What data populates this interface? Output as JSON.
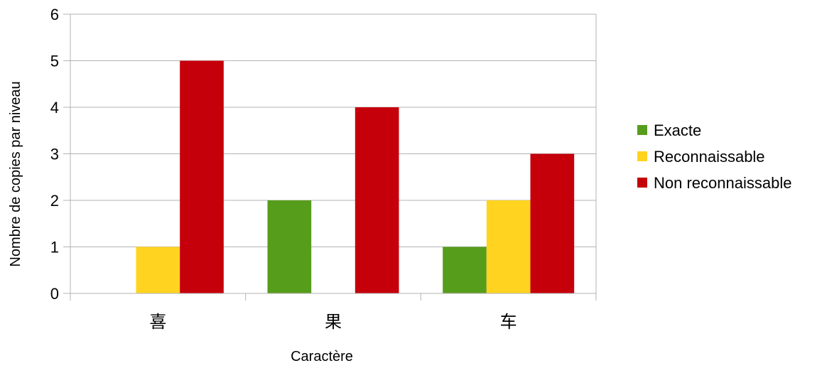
{
  "chart_data": {
    "type": "bar",
    "title": "",
    "xlabel": "Caractère",
    "ylabel": "Nombre de copies par niveau",
    "categories": [
      "喜",
      "果",
      "车"
    ],
    "series": [
      {
        "name": "Exacte",
        "values": [
          0,
          2,
          1
        ],
        "color": "#579d1c"
      },
      {
        "name": "Reconnaissable",
        "values": [
          1,
          0,
          2
        ],
        "color": "#ffd320"
      },
      {
        "name": "Non reconnaissable",
        "values": [
          5,
          4,
          3
        ],
        "color": "#c5000b"
      }
    ],
    "ylim": [
      0,
      6
    ],
    "yticks": [
      0,
      1,
      2,
      3,
      4,
      5,
      6
    ],
    "grid": true,
    "legend_position": "right"
  }
}
